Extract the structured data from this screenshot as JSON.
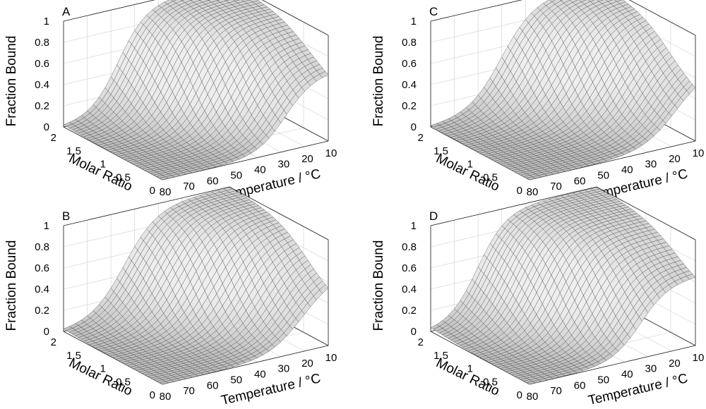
{
  "figure": {
    "description_panels": [
      "A",
      "C",
      "B",
      "D"
    ]
  },
  "chart_data": [
    {
      "type": "surface",
      "panel_label": "A",
      "zlabel": "Fraction Bound",
      "xlabel": "Temperature / °C",
      "ylabel": "Molar Ratio",
      "z_ticks": [
        "0",
        "0.2",
        "0.4",
        "0.6",
        "0.8",
        "1"
      ],
      "x_ticks": [
        "80",
        "70",
        "60",
        "50",
        "40",
        "30",
        "20",
        "10"
      ],
      "y_ticks": [
        "2",
        "1.5",
        "1",
        "0.5",
        "0"
      ],
      "xlim": [
        10,
        80
      ],
      "ylim": [
        0,
        2
      ],
      "zlim": [
        0,
        1
      ],
      "model": {
        "tm_low": 22,
        "tm_high": 62,
        "ratio_mid": 0.95,
        "ratio_width": 0.55,
        "temp_width": 6
      }
    },
    {
      "type": "surface",
      "panel_label": "C",
      "zlabel": "Fraction Bound",
      "xlabel": "Temperature / °C",
      "ylabel": "Molar Ratio",
      "z_ticks": [
        "0",
        "0.2",
        "0.4",
        "0.6",
        "0.8",
        "1"
      ],
      "x_ticks": [
        "80",
        "70",
        "60",
        "50",
        "40",
        "30",
        "20",
        "10"
      ],
      "y_ticks": [
        "2",
        "1.5",
        "1",
        "0.5",
        "0"
      ],
      "xlim": [
        10,
        80
      ],
      "ylim": [
        0,
        2
      ],
      "zlim": [
        0,
        1
      ],
      "model": {
        "tm_low": 15,
        "tm_high": 58,
        "ratio_mid": 1.25,
        "ratio_width": 0.5,
        "temp_width": 7
      }
    },
    {
      "type": "surface",
      "panel_label": "B",
      "zlabel": "Fraction Bound",
      "xlabel": "Temperature / °C",
      "ylabel": "Molar Ratio",
      "z_ticks": [
        "0",
        "0.2",
        "0.4",
        "0.6",
        "0.8",
        "1"
      ],
      "x_ticks": [
        "80",
        "70",
        "60",
        "50",
        "40",
        "30",
        "20",
        "10"
      ],
      "y_ticks": [
        "2",
        "1.5",
        "1",
        "0.5",
        "0"
      ],
      "xlim": [
        10,
        80
      ],
      "ylim": [
        0,
        2
      ],
      "zlim": [
        0,
        1
      ],
      "model": {
        "tm_low": 16,
        "tm_high": 60,
        "ratio_mid": 1.05,
        "ratio_width": 0.5,
        "temp_width": 7
      }
    },
    {
      "type": "surface",
      "panel_label": "D",
      "zlabel": "Fraction Bound",
      "xlabel": "Temperature / °C",
      "ylabel": "Molar Ratio",
      "z_ticks": [
        "0",
        "0.2",
        "0.4",
        "0.6",
        "0.8",
        "1"
      ],
      "x_ticks": [
        "80",
        "70",
        "60",
        "50",
        "40",
        "30",
        "20",
        "10"
      ],
      "y_ticks": [
        "2",
        "1.5",
        "1",
        "0.5",
        "0"
      ],
      "xlim": [
        10,
        80
      ],
      "ylim": [
        0,
        2
      ],
      "zlim": [
        0,
        1
      ],
      "model": {
        "tm_low": 26,
        "tm_high": 64,
        "ratio_mid": 0.8,
        "ratio_width": 0.55,
        "temp_width": 6
      }
    }
  ]
}
